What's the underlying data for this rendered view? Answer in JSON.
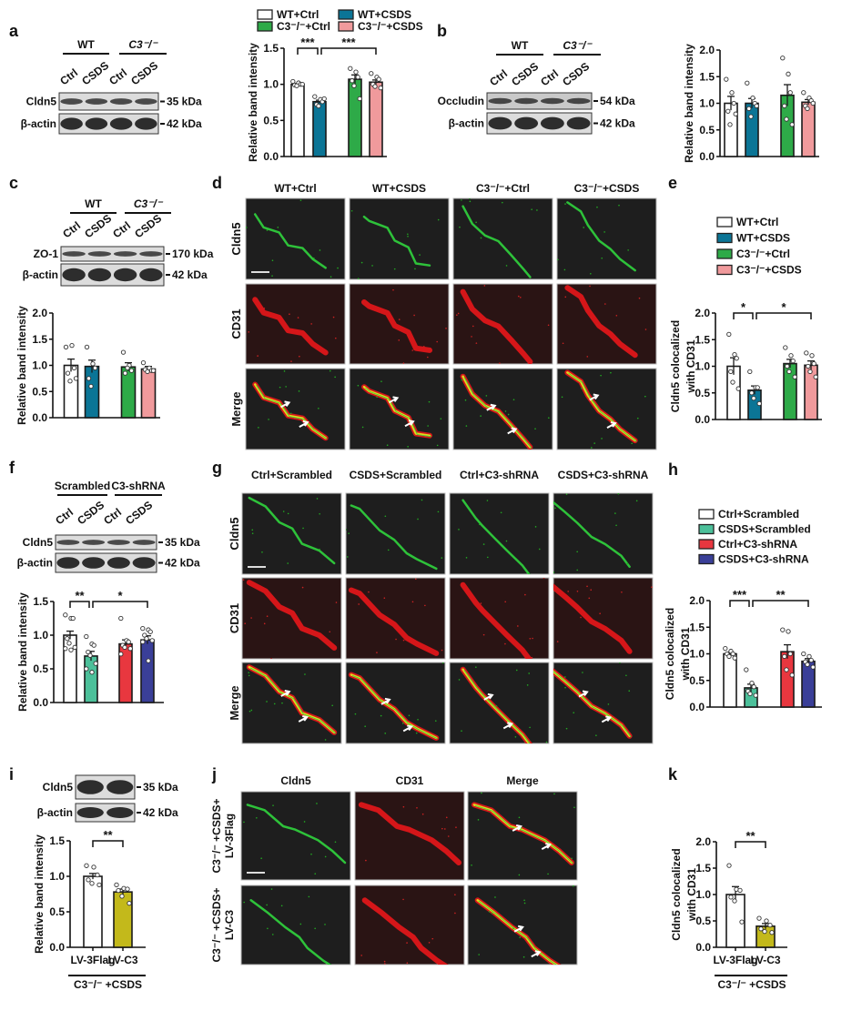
{
  "panel_labels": {
    "a": "a",
    "b": "b",
    "c": "c",
    "d": "d",
    "e": "e",
    "f": "f",
    "g": "g",
    "h": "h",
    "i": "i",
    "j": "j",
    "k": "k"
  },
  "blots": {
    "a": {
      "groups": [
        "WT",
        "C3⁻/⁻"
      ],
      "lanes": [
        "Ctrl",
        "CSDS",
        "Ctrl",
        "CSDS"
      ],
      "rows": [
        {
          "label": "Cldn5",
          "kda": "35 kDa"
        },
        {
          "label": "β-actin",
          "kda": "42 kDa"
        }
      ]
    },
    "b": {
      "groups": [
        "WT",
        "C3⁻/⁻"
      ],
      "lanes": [
        "Ctrl",
        "CSDS",
        "Ctrl",
        "CSDS"
      ],
      "rows": [
        {
          "label": "Occludin",
          "kda": "54 kDa"
        },
        {
          "label": "β-actin",
          "kda": "42 kDa"
        }
      ]
    },
    "c": {
      "groups": [
        "WT",
        "C3⁻/⁻"
      ],
      "lanes": [
        "Ctrl",
        "CSDS",
        "Ctrl",
        "CSDS"
      ],
      "rows": [
        {
          "label": "ZO-1",
          "kda": "170 kDa"
        },
        {
          "label": "β-actin",
          "kda": "42  kDa"
        }
      ]
    },
    "f": {
      "groups": [
        "Scrambled",
        "C3-shRNA"
      ],
      "lanes": [
        "Ctrl",
        "CSDS",
        "Ctrl",
        "CSDS"
      ],
      "rows": [
        {
          "label": "Cldn5",
          "kda": "35 kDa"
        },
        {
          "label": "β-actin",
          "kda": "42 kDa"
        }
      ]
    },
    "i": {
      "groups": [],
      "lanes": [],
      "rows": [
        {
          "label": "Cldn5",
          "kda": "35 kDa"
        },
        {
          "label": "β-actin",
          "kda": "42 kDa"
        }
      ]
    }
  },
  "micrographs": {
    "d": {
      "columns": [
        "WT+Ctrl",
        "WT+CSDS",
        "C3⁻/⁻+Ctrl",
        "C3⁻/⁻+CSDS"
      ],
      "rows": [
        "Cldn5",
        "CD31",
        "Merge"
      ]
    },
    "g": {
      "columns": [
        "Ctrl+Scrambled",
        "CSDS+Scrambled",
        "Ctrl+C3-shRNA",
        "CSDS+C3-shRNA"
      ],
      "rows": [
        "Cldn5",
        "CD31",
        "Merge"
      ]
    },
    "j": {
      "columns": [
        "Cldn5",
        "CD31",
        "Merge"
      ],
      "rows": [
        [
          "C3⁻/⁻ +CSDS+",
          "LV-3Flag"
        ],
        [
          "C3⁻/⁻ +CSDS+",
          "LV-C3"
        ]
      ]
    }
  },
  "legends": {
    "a": [
      {
        "label": "WT+Ctrl",
        "color": "#ffffff"
      },
      {
        "label": "WT+CSDS",
        "color": "#0b7596"
      },
      {
        "label": "C3⁻/⁻+Ctrl",
        "color": "#2eaa48"
      },
      {
        "label": "C3⁻/⁻+CSDS",
        "color": "#f09a9c"
      }
    ],
    "e": [
      {
        "label": "WT+Ctrl",
        "color": "#ffffff"
      },
      {
        "label": "WT+CSDS",
        "color": "#0b7596"
      },
      {
        "label": "C3⁻/⁻+Ctrl",
        "color": "#2eaa48"
      },
      {
        "label": "C3⁻/⁻+CSDS",
        "color": "#f09a9c"
      }
    ],
    "h": [
      {
        "label": "Ctrl+Scrambled",
        "color": "#ffffff"
      },
      {
        "label": "CSDS+Scrambled",
        "color": "#4cc09a"
      },
      {
        "label": "Ctrl+C3-shRNA",
        "color": "#e8373f"
      },
      {
        "label": "CSDS+C3-shRNA",
        "color": "#3a3f98"
      }
    ]
  },
  "channel_colors": {
    "Cldn5": "#2fbf3f",
    "CD31": "#ee2020",
    "Merge": "#111111"
  },
  "chart_data": [
    {
      "panel": "a",
      "type": "bar",
      "ylabel": [
        "Relative band intensity"
      ],
      "ylim": [
        0,
        1.5
      ],
      "yticks": [
        "0.0",
        "0.5",
        "1.0",
        "1.5"
      ],
      "categories": [
        "WT+Ctrl",
        "WT+CSDS",
        "C3⁻/⁻+Ctrl",
        "C3⁻/⁻+CSDS"
      ],
      "colors": [
        "#ffffff",
        "#0b7596",
        "#2eaa48",
        "#f09a9c"
      ],
      "values": [
        1.0,
        0.76,
        1.07,
        1.03
      ],
      "sem": [
        0.01,
        0.02,
        0.06,
        0.03
      ],
      "points": [
        [
          1.04,
          1.02,
          1.0,
          0.99,
          0.98,
          1.0
        ],
        [
          0.83,
          0.79,
          0.76,
          0.72,
          0.7,
          0.8
        ],
        [
          1.22,
          1.17,
          1.1,
          1.05,
          0.98,
          0.8
        ],
        [
          1.15,
          1.1,
          1.07,
          1.0,
          0.97,
          0.95
        ]
      ],
      "significance": [
        {
          "from": 0,
          "to": 1,
          "label": "***"
        },
        {
          "from": 1,
          "to": 3,
          "label": "***"
        }
      ]
    },
    {
      "panel": "b",
      "type": "bar",
      "ylabel": [
        "Relative band intensity"
      ],
      "ylim": [
        0,
        2.0
      ],
      "yticks": [
        "0.0",
        "0.5",
        "1.0",
        "1.5",
        "2.0"
      ],
      "colors": [
        "#ffffff",
        "#0b7596",
        "#2eaa48",
        "#f09a9c"
      ],
      "values": [
        1.0,
        1.0,
        1.15,
        1.02
      ],
      "sem": [
        0.13,
        0.09,
        0.2,
        0.05
      ],
      "points": [
        [
          1.45,
          1.2,
          1.0,
          0.85,
          0.6,
          0.8
        ],
        [
          1.38,
          1.1,
          1.0,
          0.9,
          0.75,
          0.95
        ],
        [
          1.85,
          1.55,
          1.2,
          0.95,
          0.7,
          0.6
        ],
        [
          1.2,
          1.1,
          1.05,
          0.95,
          0.9,
          1.0
        ]
      ],
      "significance": []
    },
    {
      "panel": "c",
      "type": "bar",
      "ylabel": [
        "Relative band intensity"
      ],
      "ylim": [
        0,
        2.0
      ],
      "yticks": [
        "0.0",
        "0.5",
        "1.0",
        "1.5",
        "2.0"
      ],
      "colors": [
        "#ffffff",
        "#0b7596",
        "#2eaa48",
        "#f09a9c"
      ],
      "values": [
        1.0,
        0.98,
        0.97,
        0.93
      ],
      "sem": [
        0.12,
        0.12,
        0.08,
        0.05
      ],
      "points": [
        [
          1.35,
          1.38,
          0.95,
          0.85,
          0.7,
          0.75
        ],
        [
          1.35,
          1.03,
          0.95,
          0.75,
          0.6
        ],
        [
          1.25,
          1.0,
          0.9,
          0.85,
          0.95
        ],
        [
          1.05,
          0.95,
          0.9,
          0.92,
          0.88,
          0.9
        ]
      ],
      "significance": []
    },
    {
      "panel": "e",
      "type": "bar",
      "ylabel": [
        "Cldn5 colocalized",
        "with CD31"
      ],
      "ylim": [
        0,
        2.0
      ],
      "yticks": [
        "0.0",
        "0.5",
        "1.0",
        "1.5",
        "2.0"
      ],
      "categories": [
        "WT+Ctrl",
        "WT+CSDS",
        "C3⁻/⁻+Ctrl",
        "C3⁻/⁻+CSDS"
      ],
      "colors": [
        "#ffffff",
        "#0b7596",
        "#2eaa48",
        "#f09a9c"
      ],
      "values": [
        1.0,
        0.55,
        1.05,
        1.02
      ],
      "sem": [
        0.16,
        0.08,
        0.08,
        0.08
      ],
      "points": [
        [
          1.6,
          1.22,
          1.15,
          0.9,
          0.7,
          0.58
        ],
        [
          0.9,
          0.6,
          0.6,
          0.5,
          0.4,
          0.3
        ],
        [
          1.35,
          1.2,
          1.1,
          1.0,
          0.9,
          0.8
        ],
        [
          1.25,
          1.2,
          1.05,
          1.0,
          0.9,
          0.8
        ]
      ],
      "significance": [
        {
          "from": 0,
          "to": 1,
          "label": "*"
        },
        {
          "from": 1,
          "to": 3,
          "label": "*"
        }
      ]
    },
    {
      "panel": "f",
      "type": "bar",
      "ylabel": [
        "Relative band intensity"
      ],
      "ylim": [
        0,
        1.5
      ],
      "yticks": [
        "0.0",
        "0.5",
        "1.0",
        "1.5"
      ],
      "colors": [
        "#ffffff",
        "#4cc09a",
        "#e8373f",
        "#3a3f98"
      ],
      "values": [
        1.0,
        0.69,
        0.87,
        0.93
      ],
      "sem": [
        0.06,
        0.07,
        0.06,
        0.06
      ],
      "points": [
        [
          1.3,
          1.25,
          1.25,
          0.95,
          0.88,
          0.82,
          0.8,
          0.78
        ],
        [
          0.98,
          0.87,
          0.85,
          0.75,
          0.7,
          0.58,
          0.5,
          0.45
        ],
        [
          1.25,
          0.92,
          0.9,
          0.85,
          0.82,
          0.8,
          0.72
        ],
        [
          1.1,
          1.08,
          1.05,
          1.0,
          0.95,
          0.92,
          0.9,
          0.62
        ]
      ],
      "significance": [
        {
          "from": 0,
          "to": 1,
          "label": "**"
        },
        {
          "from": 1,
          "to": 3,
          "label": "*"
        }
      ]
    },
    {
      "panel": "h",
      "type": "bar",
      "ylabel": [
        "Cldn5 colocalized",
        "with CD31"
      ],
      "ylim": [
        0,
        2.0
      ],
      "yticks": [
        "0.0",
        "0.5",
        "1.0",
        "1.5",
        "2.0"
      ],
      "categories": [
        "Ctrl+Scrambled",
        "CSDS+Scrambled",
        "Ctrl+C3-shRNA",
        "CSDS+C3-shRNA"
      ],
      "colors": [
        "#ffffff",
        "#4cc09a",
        "#e8373f",
        "#3a3f98"
      ],
      "values": [
        1.0,
        0.36,
        1.04,
        0.86
      ],
      "sem": [
        0.03,
        0.07,
        0.13,
        0.05
      ],
      "points": [
        [
          1.1,
          1.05,
          1.0,
          1.0,
          0.95,
          0.92
        ],
        [
          0.7,
          0.45,
          0.38,
          0.3,
          0.25,
          0.22
        ],
        [
          1.45,
          1.42,
          1.0,
          0.95,
          0.7,
          0.6
        ],
        [
          1.0,
          0.95,
          0.88,
          0.85,
          0.8,
          0.75
        ]
      ],
      "significance": [
        {
          "from": 0,
          "to": 1,
          "label": "***"
        },
        {
          "from": 1,
          "to": 3,
          "label": "**"
        }
      ]
    },
    {
      "panel": "i",
      "type": "bar",
      "ylabel": [
        "Relative band intensity"
      ],
      "ylim": [
        0,
        1.5
      ],
      "yticks": [
        "0.0",
        "0.5",
        "1.0",
        "1.5"
      ],
      "categories": [
        "LV-3Flag",
        "LV-C3"
      ],
      "group_label": "C3⁻/⁻ +CSDS",
      "colors": [
        "#ffffff",
        "#c3b91b"
      ],
      "values": [
        1.0,
        0.78
      ],
      "sem": [
        0.04,
        0.04
      ],
      "points": [
        [
          1.15,
          1.13,
          1.02,
          0.95,
          0.9,
          0.88
        ],
        [
          0.88,
          0.83,
          0.82,
          0.8,
          0.72,
          0.62
        ]
      ],
      "significance": [
        {
          "from": 0,
          "to": 1,
          "label": "**"
        }
      ]
    },
    {
      "panel": "k",
      "type": "bar",
      "ylabel": [
        "Cldn5 colocalized",
        "with CD31"
      ],
      "ylim": [
        0,
        2.0
      ],
      "yticks": [
        "0.0",
        "0.5",
        "1.0",
        "1.5",
        "2.0"
      ],
      "categories": [
        "LV-3Flag",
        "LV-C3"
      ],
      "group_label": "C3⁻/⁻ +CSDS",
      "colors": [
        "#ffffff",
        "#c3b91b"
      ],
      "values": [
        1.0,
        0.4
      ],
      "sem": [
        0.15,
        0.05
      ],
      "points": [
        [
          1.55,
          1.1,
          1.08,
          0.95,
          0.88,
          0.48
        ],
        [
          0.55,
          0.5,
          0.42,
          0.35,
          0.3,
          0.28
        ]
      ],
      "significance": [
        {
          "from": 0,
          "to": 1,
          "label": "**"
        }
      ]
    }
  ]
}
